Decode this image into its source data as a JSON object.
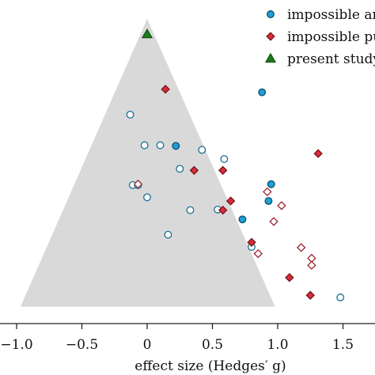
{
  "chart_data": {
    "type": "scatter",
    "chart_kind": "funnel plot",
    "xlabel": "effect size (Hedges′ g)",
    "xlim": [
      -1.1,
      1.75
    ],
    "ylim": [
      0,
      1
    ],
    "x_ticks": [
      -1.0,
      -0.5,
      0,
      0.5,
      1.0,
      1.5
    ],
    "x_tick_labels": [
      "−1.0",
      "−0.5",
      "0",
      "0.5",
      "1.0",
      "1.5"
    ],
    "grid": false,
    "legend_position": "top-right",
    "funnel": {
      "apex": [
        0.0,
        0.985
      ],
      "base_left": [
        -0.97,
        0.045
      ],
      "base_right": [
        0.98,
        0.045
      ],
      "color": "#d9d9d9"
    },
    "legend": [
      {
        "label": "impossible ana",
        "marker": "circle",
        "color": "#1f9fd6"
      },
      {
        "label": "impossible puz",
        "marker": "diamond",
        "color": "#d62e3a"
      },
      {
        "label": "present study",
        "marker": "triangle",
        "color": "#1b7a1b"
      }
    ],
    "series": [
      {
        "marker": "circle",
        "color": "#1f9fd6",
        "filled_points": [
          [
            0.88,
            0.745
          ],
          [
            0.22,
            0.57
          ],
          [
            0.95,
            0.445
          ],
          [
            0.93,
            0.39
          ],
          [
            0.73,
            0.33
          ]
        ],
        "open_points": [
          [
            -0.13,
            0.672
          ],
          [
            -0.02,
            0.572
          ],
          [
            0.1,
            0.572
          ],
          [
            0.42,
            0.557
          ],
          [
            0.59,
            0.527
          ],
          [
            0.25,
            0.495
          ],
          [
            -0.11,
            0.442
          ],
          [
            -0.07,
            0.442
          ],
          [
            0.0,
            0.402
          ],
          [
            0.33,
            0.36
          ],
          [
            0.54,
            0.362
          ],
          [
            0.16,
            0.28
          ],
          [
            0.8,
            0.24
          ],
          [
            1.48,
            0.075
          ]
        ]
      },
      {
        "marker": "diamond",
        "color": "#d62e3a",
        "filled_points": [
          [
            0.14,
            0.755
          ],
          [
            1.31,
            0.545
          ],
          [
            0.36,
            0.49
          ],
          [
            0.58,
            0.49
          ],
          [
            0.64,
            0.39
          ],
          [
            0.58,
            0.36
          ],
          [
            0.8,
            0.255
          ],
          [
            1.09,
            0.14
          ],
          [
            1.25,
            0.082
          ]
        ],
        "open_points": [
          [
            -0.07,
            0.445
          ],
          [
            0.92,
            0.42
          ],
          [
            1.03,
            0.375
          ],
          [
            0.97,
            0.323
          ],
          [
            0.85,
            0.218
          ],
          [
            1.18,
            0.238
          ],
          [
            1.26,
            0.203
          ],
          [
            1.26,
            0.18
          ]
        ]
      },
      {
        "marker": "triangle",
        "color": "#1b7a1b",
        "filled_points": [
          [
            0.0,
            0.935
          ]
        ]
      }
    ]
  }
}
